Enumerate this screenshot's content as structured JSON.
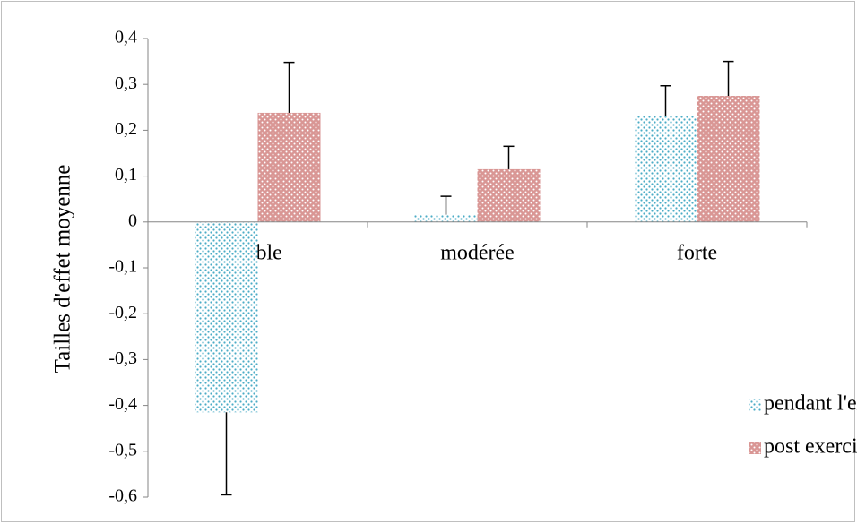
{
  "chart_data": {
    "type": "bar",
    "ylabel": "Tailles d'effet moyenne",
    "categories": [
      "faible",
      "modérée",
      "forte"
    ],
    "series": [
      {
        "name": "pendant l'exercice",
        "color": "#4bacc6",
        "values": [
          -0.415,
          0.016,
          0.232
        ],
        "errors": [
          0.18,
          0.04,
          0.065
        ]
      },
      {
        "name": "post exercice",
        "color": "#c0504d",
        "values": [
          0.238,
          0.115,
          0.275
        ],
        "errors": [
          0.11,
          0.05,
          0.075
        ]
      }
    ],
    "ylim": [
      -0.6,
      0.4
    ],
    "yticks": [
      {
        "value": -0.6,
        "label": "-0,6"
      },
      {
        "value": -0.5,
        "label": "-0,5"
      },
      {
        "value": -0.4,
        "label": "-0,4"
      },
      {
        "value": -0.3,
        "label": "-0,3"
      },
      {
        "value": -0.2,
        "label": "-0,2"
      },
      {
        "value": -0.1,
        "label": "-0,1"
      },
      0,
      {
        "value": 0.1,
        "label": "0,1"
      },
      {
        "value": 0.2,
        "label": "0,2"
      },
      {
        "value": 0.3,
        "label": "0,3"
      },
      {
        "value": 0.4,
        "label": "0,4"
      }
    ],
    "legend": "right"
  }
}
